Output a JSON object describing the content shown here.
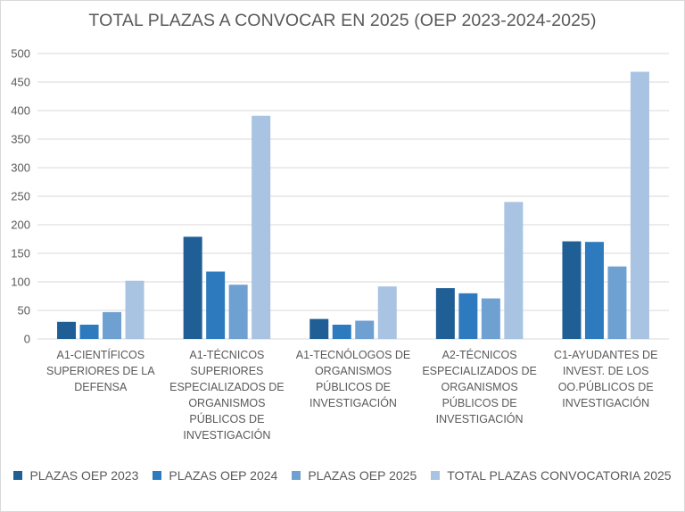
{
  "chart_data": {
    "type": "bar",
    "title": "TOTAL PLAZAS A CONVOCAR EN 2025 (OEP 2023-2024-2025)",
    "categories": [
      "A1-CIENTÍFICOS SUPERIORES DE LA DEFENSA",
      "A1-TÉCNICOS SUPERIORES ESPECIALIZADOS DE ORGANISMOS PÚBLICOS DE INVESTIGACIÓN",
      "A1-TECNÓLOGOS DE ORGANISMOS PÚBLICOS DE INVESTIGACIÓN",
      "A2-TÉCNICOS ESPECIALIZADOS DE ORGANISMOS PÚBLICOS DE INVESTIGACIÓN",
      "C1-AYUDANTES DE INVEST. DE LOS OO.PÚBLICOS DE INVESTIGACIÓN"
    ],
    "category_lines": [
      [
        "A1-CIENTÍFICOS",
        "SUPERIORES DE LA",
        "DEFENSA"
      ],
      [
        "A1-TÉCNICOS",
        "SUPERIORES",
        "ESPECIALIZADOS DE",
        "ORGANISMOS",
        "PÚBLICOS DE",
        "INVESTIGACIÓN"
      ],
      [
        "A1-TECNÓLOGOS DE",
        "ORGANISMOS",
        "PÚBLICOS DE",
        "INVESTIGACIÓN"
      ],
      [
        "A2-TÉCNICOS",
        "ESPECIALIZADOS DE",
        "ORGANISMOS",
        "PÚBLICOS DE",
        "INVESTIGACIÓN"
      ],
      [
        "C1-AYUDANTES DE",
        "INVEST. DE LOS",
        "OO.PÚBLICOS DE",
        "INVESTIGACIÓN"
      ]
    ],
    "series": [
      {
        "name": "PLAZAS OEP 2023",
        "color": "#1f5f96",
        "values": [
          30,
          179,
          35,
          89,
          171
        ]
      },
      {
        "name": "PLAZAS OEP 2024",
        "color": "#2e7abf",
        "values": [
          25,
          118,
          25,
          80,
          170
        ]
      },
      {
        "name": "PLAZAS OEP 2025",
        "color": "#6fa0d2",
        "values": [
          47,
          95,
          32,
          71,
          127
        ]
      },
      {
        "name": "TOTAL PLAZAS CONVOCATORIA 2025",
        "color": "#a9c3e2",
        "values": [
          102,
          391,
          92,
          240,
          468
        ]
      }
    ],
    "ylim": [
      0,
      500
    ],
    "yticks": [
      0,
      50,
      100,
      150,
      200,
      250,
      300,
      350,
      400,
      450,
      500
    ],
    "grid": true,
    "legend": "bottom"
  }
}
